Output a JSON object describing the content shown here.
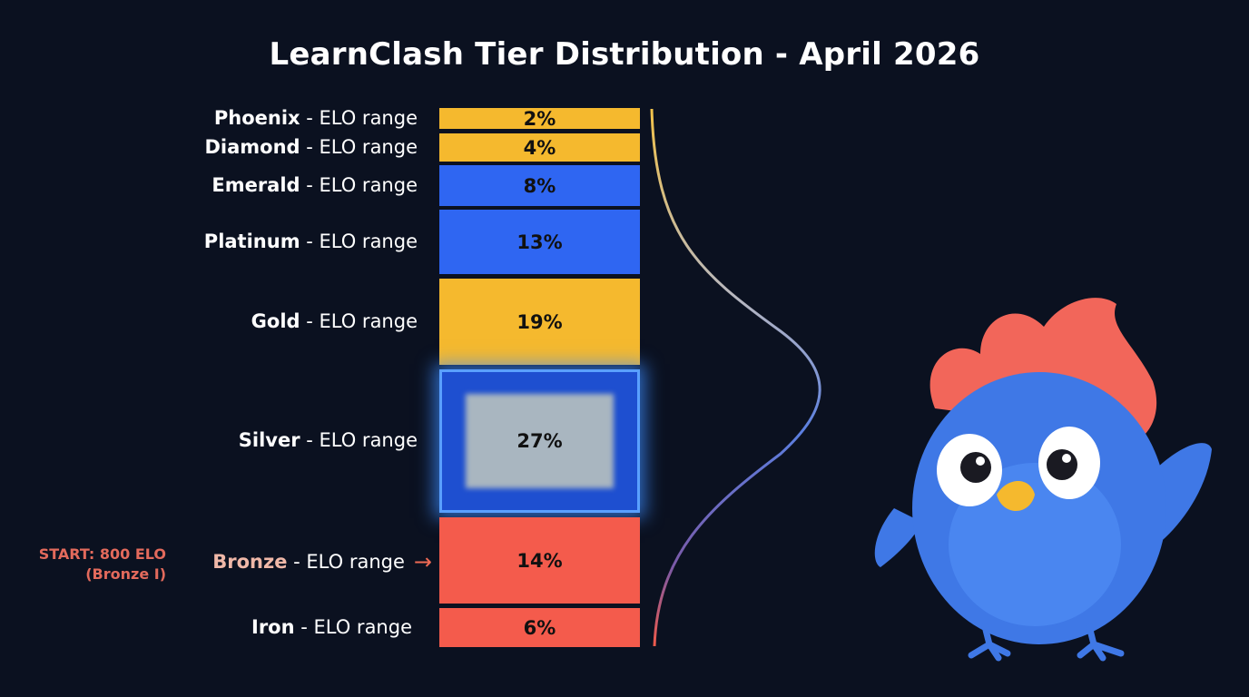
{
  "chart_data": {
    "type": "bar",
    "orientation": "stacked-vertical",
    "title": "LearnClash Tier Distribution - April 2026",
    "label_suffix": " - ELO range",
    "categories": [
      "Phoenix",
      "Diamond",
      "Emerald",
      "Platinum",
      "Gold",
      "Silver",
      "Bronze",
      "Iron"
    ],
    "values": [
      2,
      4,
      8,
      13,
      19,
      27,
      14,
      6
    ],
    "value_labels": [
      "2%",
      "4%",
      "8%",
      "13%",
      "19%",
      "27%",
      "14%",
      "6%"
    ],
    "colors": [
      "#f5b92e",
      "#f5b92e",
      "#2f66f2",
      "#2f66f2",
      "#f5b92e",
      "#a9b6c0",
      "#f45b4c",
      "#f45b4c"
    ],
    "highlighted": "Silver",
    "annotation": {
      "line1": "START: 800 ELO",
      "line2": "(Bronze I)",
      "target": "Bronze",
      "arrow": "→"
    },
    "distribution_curve": true
  }
}
